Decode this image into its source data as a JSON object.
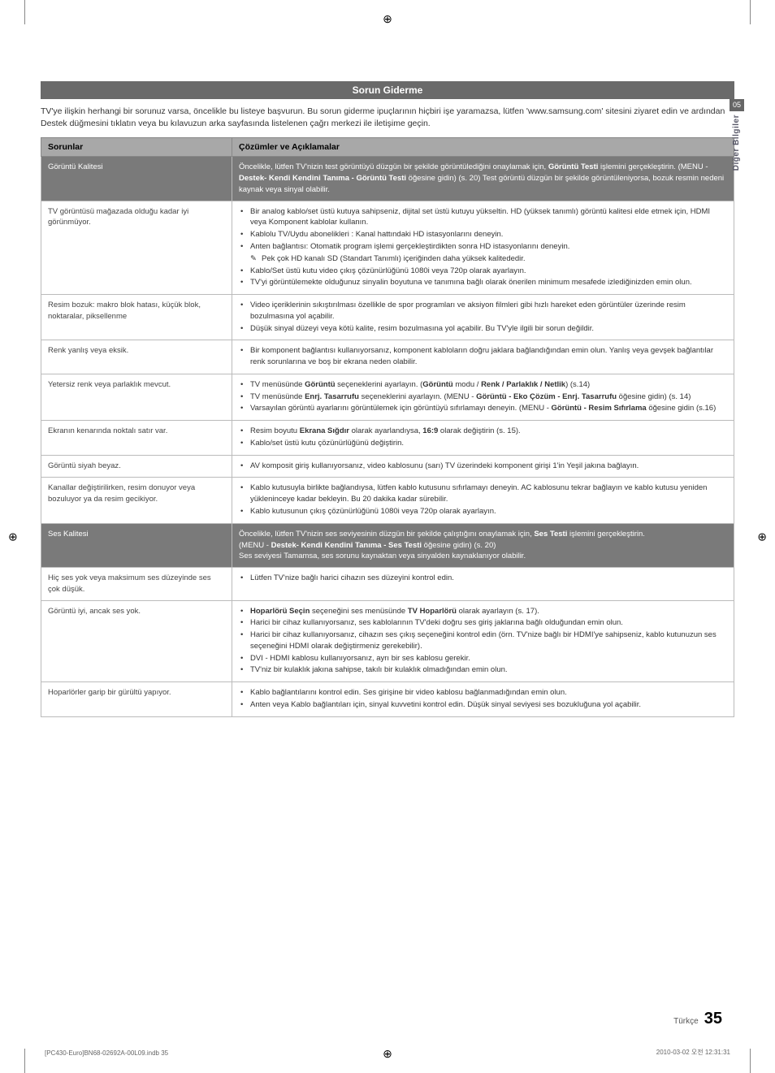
{
  "registration_marks": {
    "symbol": "⊕",
    "color": "#000000"
  },
  "side_tab": {
    "number": "05",
    "label": "Diğer Bilgiler",
    "bg_color": "#666666",
    "text_color": "#5a5a6a"
  },
  "section": {
    "title": "Sorun Giderme",
    "bg_color": "#6a6a6a",
    "text_color": "#ffffff"
  },
  "intro": "TV'ye ilişkin herhangi bir sorunuz varsa, öncelikle bu listeye başvurun. Bu sorun giderme ipuçlarının hiçbiri işe yaramazsa, lütfen 'www.samsung.com' sitesini ziyaret edin ve ardından Destek düğmesini tıklatın veya bu kılavuzun arka sayfasında listelenen çağrı merkezi ile iletişime geçin.",
  "table": {
    "headers": {
      "col1": "Sorunlar",
      "col2": "Çözümler ve Açıklamalar"
    },
    "header_bg": "#a8a8a8",
    "category_bg": "#7a7a7a",
    "border_color": "#bbbbbb",
    "rows": [
      {
        "type": "category",
        "problem": "Görüntü Kalitesi",
        "solution_html": "Öncelikle, lütfen TV'nizin test görüntüyü düzgün bir şekilde görüntülediğini onaylamak için, <b>Görüntü Testi</b> işlemini gerçekleştirin. (MENU - <b>Destek- Kendi Kendini Tanıma - Görüntü Testi</b> öğesine gidin) (s. 20) Test görüntü düzgün bir şekilde görüntüleniyorsa, bozuk resmin nedeni kaynak veya sinyal olabilir."
      },
      {
        "type": "row",
        "problem": "TV görüntüsü mağazada olduğu kadar iyi görünmüyor.",
        "items": [
          "Bir analog kablo/set üstü kutuya sahipseniz, dijital set üstü kutuyu yükseltin. HD (yüksek tanımlı) görüntü kalitesi elde etmek için, HDMI veya Komponent kablolar kullanın.",
          "Kablolu TV/Uydu abonelikleri : Kanal hattındaki HD istasyonlarını deneyin.",
          "Anten bağlantısı: Otomatik program işlemi gerçekleştirdikten sonra HD istasyonlarını deneyin."
        ],
        "sub_note": "Pek çok HD kanalı SD (Standart Tanımlı) içeriğinden daha yüksek kalitededir.",
        "items2": [
          "Kablo/Set üstü kutu video çıkış çözünürlüğünü 1080i veya 720p olarak ayarlayın.",
          "TV'yi görüntülemekte olduğunuz sinyalin boyutuna ve tanımına bağlı olarak önerilen minimum mesafede izlediğinizden emin olun."
        ]
      },
      {
        "type": "row",
        "problem": "Resim bozuk: makro blok hatası, küçük blok, noktaralar, piksellenme",
        "items": [
          "Video içeriklerinin sıkıştırılması özellikle de spor programları ve aksiyon filmleri gibi hızlı hareket eden görüntüler üzerinde resim bozulmasına yol açabilir.",
          "Düşük sinyal düzeyi veya kötü kalite, resim bozulmasına yol açabilir. Bu TV'yle ilgili bir sorun değildir."
        ]
      },
      {
        "type": "row",
        "problem": "Renk yanlış veya eksik.",
        "items": [
          "Bir komponent bağlantısı kullanıyorsanız, komponent kabloların doğru jaklara bağlandığından emin olun. Yanlış veya gevşek bağlantılar renk sorunlarına ve boş bir ekrana neden olabilir."
        ]
      },
      {
        "type": "row",
        "problem": "Yetersiz renk veya parlaklık mevcut.",
        "items": [
          "TV menüsünde <b>Görüntü</b> seçeneklerini ayarlayın. (<b>Görüntü</b> modu / <b>Renk / Parlaklık / Netlik</b>) (s.14)",
          "TV menüsünde <b>Enrj. Tasarrufu</b> seçeneklerini ayarlayın. (MENU - <b>Görüntü - Eko Çözüm - Enrj. Tasarrufu</b> öğesine gidin) (s. 14)",
          "Varsayılan görüntü ayarlarını görüntülemek için görüntüyü sıfırlamayı deneyin. (MENU - <b>Görüntü - Resim Sıfırlama</b> öğesine gidin (s.16)"
        ]
      },
      {
        "type": "row",
        "problem": "Ekranın kenarında noktalı satır var.",
        "items": [
          "Resim boyutu <b>Ekrana Sığdır</b> olarak ayarlandıysa, <b>16:9</b> olarak değiştirin (s. 15).",
          "Kablo/set üstü kutu çözünürlüğünü değiştirin."
        ]
      },
      {
        "type": "row",
        "problem": "Görüntü siyah beyaz.",
        "items": [
          "AV komposit giriş kullanıyorsanız, video kablosunu (sarı) TV üzerindeki komponent girişi 1'in Yeşil jakına bağlayın."
        ]
      },
      {
        "type": "row",
        "problem": "Kanallar değiştirilirken, resim donuyor veya bozuluyor ya da resim gecikiyor.",
        "items": [
          "Kablo kutusuyla birlikte bağlandıysa, lütfen kablo kutusunu sıfırlamayı deneyin. AC kablosunu tekrar bağlayın ve kablo kutusu yeniden yükleninceye kadar bekleyin. Bu 20 dakika kadar sürebilir.",
          "Kablo kutusunun çıkış çözünürlüğünü 1080i veya 720p olarak ayarlayın."
        ]
      },
      {
        "type": "category",
        "problem": "Ses Kalitesi",
        "solution_html": "Öncelikle, lütfen TV'nizin ses seviyesinin düzgün bir şekilde çalıştığını onaylamak için, <b>Ses Testi</b> işlemini gerçekleştirin.<br>(MENU - <b>Destek- Kendi Kendini Tanıma - Ses Testi</b> öğesine gidin) (s. 20)<br>Ses seviyesi Tamamsa, ses sorunu kaynaktan veya sinyalden kaynaklanıyor olabilir."
      },
      {
        "type": "row",
        "problem": "Hiç ses yok veya maksimum ses düzeyinde ses çok düşük.",
        "items": [
          "Lütfen TV'nize bağlı harici cihazın ses düzeyini kontrol edin."
        ]
      },
      {
        "type": "row",
        "problem": "Görüntü iyi, ancak ses yok.",
        "items": [
          "<b>Hoparlörü Seçin</b> seçeneğini ses menüsünde <b>TV Hoparlörü</b> olarak ayarlayın (s. 17).",
          "Harici bir cihaz kullanıyorsanız, ses kablolarının TV'deki doğru ses giriş jaklarına bağlı olduğundan emin olun.",
          "Harici bir cihaz kullanıyorsanız, cihazın ses çıkış seçeneğini kontrol edin (örn. TV'nize bağlı bir HDMI'ye sahipseniz, kablo kutunuzun ses seçeneğini HDMI olarak değiştirmeniz gerekebilir).",
          "DVI - HDMI kablosu kullanıyorsanız, ayrı bir ses kablosu gerekir.",
          "TV'niz bir kulaklık jakına sahipse, takılı bir kulaklık olmadığından emin olun."
        ]
      },
      {
        "type": "row",
        "problem": "Hoparlörler garip bir gürültü yapıyor.",
        "items": [
          "Kablo bağlantılarını kontrol edin. Ses girişine bir video kablosu bağlanmadığından emin olun.",
          "Anten veya Kablo bağlantıları için, sinyal kuvvetini kontrol edin. Düşük sinyal seviyesi ses bozukluğuna yol açabilir."
        ]
      }
    ]
  },
  "page": {
    "lang": "Türkçe",
    "number": "35"
  },
  "footer": {
    "left": "[PC430-Euro]BN68-02692A-00L09.indb   35",
    "right": "2010-03-02   오전 12:31:31"
  }
}
